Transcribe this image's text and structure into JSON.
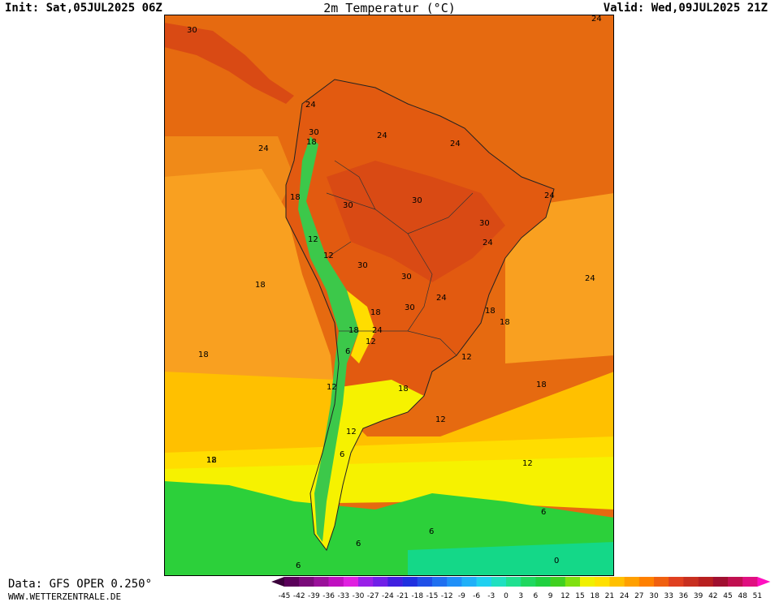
{
  "header": {
    "init_label": "Init: Sat,05JUL2025 06Z",
    "title": "2m Temperatur (°C)",
    "valid_label": "Valid: Wed,09JUL2025 21Z"
  },
  "footer": {
    "data_source": "Data: GFS OPER 0.250°",
    "website": "WWW.WETTERZENTRALE.DE"
  },
  "legend": {
    "ticks": [
      "-45",
      "-42",
      "-39",
      "-36",
      "-33",
      "-30",
      "-27",
      "-24",
      "-21",
      "-18",
      "-15",
      "-12",
      "-9",
      "-6",
      "-3",
      "0",
      "3",
      "6",
      "9",
      "12",
      "15",
      "18",
      "21",
      "24",
      "27",
      "30",
      "33",
      "36",
      "39",
      "42",
      "45",
      "48",
      "51"
    ],
    "colors": [
      "#5a005a",
      "#7a0a7a",
      "#9a109a",
      "#c010c0",
      "#e020e0",
      "#9a20e8",
      "#7020e8",
      "#4020e0",
      "#2030e0",
      "#2050e8",
      "#2070f0",
      "#2090f8",
      "#20b0f8",
      "#20d0f0",
      "#20e0c0",
      "#20e090",
      "#20d860",
      "#20d040",
      "#40d020",
      "#80e010",
      "#f0f000",
      "#ffe000",
      "#ffc000",
      "#ffa000",
      "#ff8000",
      "#f06010",
      "#e04020",
      "#c83020",
      "#b82020",
      "#a01030",
      "#c01050",
      "#e01080"
    ],
    "arrow_left_color": "#3a003a",
    "arrow_right_color": "#ff10c0"
  },
  "map": {
    "contour_labels": [
      {
        "text": "30"
      },
      {
        "text": "24"
      },
      {
        "text": "24"
      },
      {
        "text": "30"
      },
      {
        "text": "18"
      },
      {
        "text": "24"
      },
      {
        "text": "24"
      },
      {
        "text": "24"
      },
      {
        "text": "18"
      },
      {
        "text": "30"
      },
      {
        "text": "30"
      },
      {
        "text": "24"
      },
      {
        "text": "30"
      },
      {
        "text": "24"
      },
      {
        "text": "12"
      },
      {
        "text": "12"
      },
      {
        "text": "30"
      },
      {
        "text": "30"
      },
      {
        "text": "18"
      },
      {
        "text": "24"
      },
      {
        "text": "30"
      },
      {
        "text": "24"
      },
      {
        "text": "18"
      },
      {
        "text": "18"
      },
      {
        "text": "18"
      },
      {
        "text": "18"
      },
      {
        "text": "18"
      },
      {
        "text": "24"
      },
      {
        "text": "12"
      },
      {
        "text": "6"
      },
      {
        "text": "18"
      },
      {
        "text": "12"
      },
      {
        "text": "12"
      },
      {
        "text": "18"
      },
      {
        "text": "18"
      },
      {
        "text": "12"
      },
      {
        "text": "12"
      },
      {
        "text": "6"
      },
      {
        "text": "12"
      },
      {
        "text": "12"
      },
      {
        "text": "6"
      },
      {
        "text": "6"
      },
      {
        "text": "6"
      },
      {
        "text": "0"
      },
      {
        "text": "6"
      }
    ]
  }
}
